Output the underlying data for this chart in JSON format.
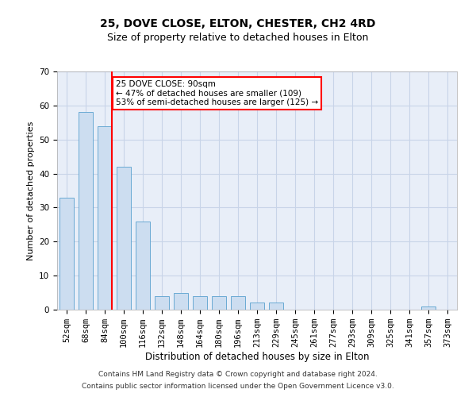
{
  "title1": "25, DOVE CLOSE, ELTON, CHESTER, CH2 4RD",
  "title2": "Size of property relative to detached houses in Elton",
  "xlabel": "Distribution of detached houses by size in Elton",
  "ylabel": "Number of detached properties",
  "footnote1": "Contains HM Land Registry data © Crown copyright and database right 2024.",
  "footnote2": "Contains public sector information licensed under the Open Government Licence v3.0.",
  "bar_labels": [
    "52sqm",
    "68sqm",
    "84sqm",
    "100sqm",
    "116sqm",
    "132sqm",
    "148sqm",
    "164sqm",
    "180sqm",
    "196sqm",
    "213sqm",
    "229sqm",
    "245sqm",
    "261sqm",
    "277sqm",
    "293sqm",
    "309sqm",
    "325sqm",
    "341sqm",
    "357sqm",
    "373sqm"
  ],
  "bar_values": [
    33,
    58,
    54,
    42,
    26,
    4,
    5,
    4,
    4,
    4,
    2,
    2,
    0,
    0,
    0,
    0,
    0,
    0,
    0,
    1,
    0
  ],
  "bar_color": "#ccddf0",
  "bar_edgecolor": "#6aaad4",
  "red_line_x": 2.375,
  "annotation_text": "25 DOVE CLOSE: 90sqm\n← 47% of detached houses are smaller (109)\n53% of semi-detached houses are larger (125) →",
  "annotation_box_color": "white",
  "annotation_box_edgecolor": "red",
  "red_line_color": "red",
  "ylim": [
    0,
    70
  ],
  "yticks": [
    0,
    10,
    20,
    30,
    40,
    50,
    60,
    70
  ],
  "grid_color": "#c8d4e8",
  "background_color": "#e8eef8",
  "title1_fontsize": 10,
  "title2_fontsize": 9,
  "xlabel_fontsize": 8.5,
  "ylabel_fontsize": 8,
  "tick_fontsize": 7.5,
  "annotation_fontsize": 7.5
}
